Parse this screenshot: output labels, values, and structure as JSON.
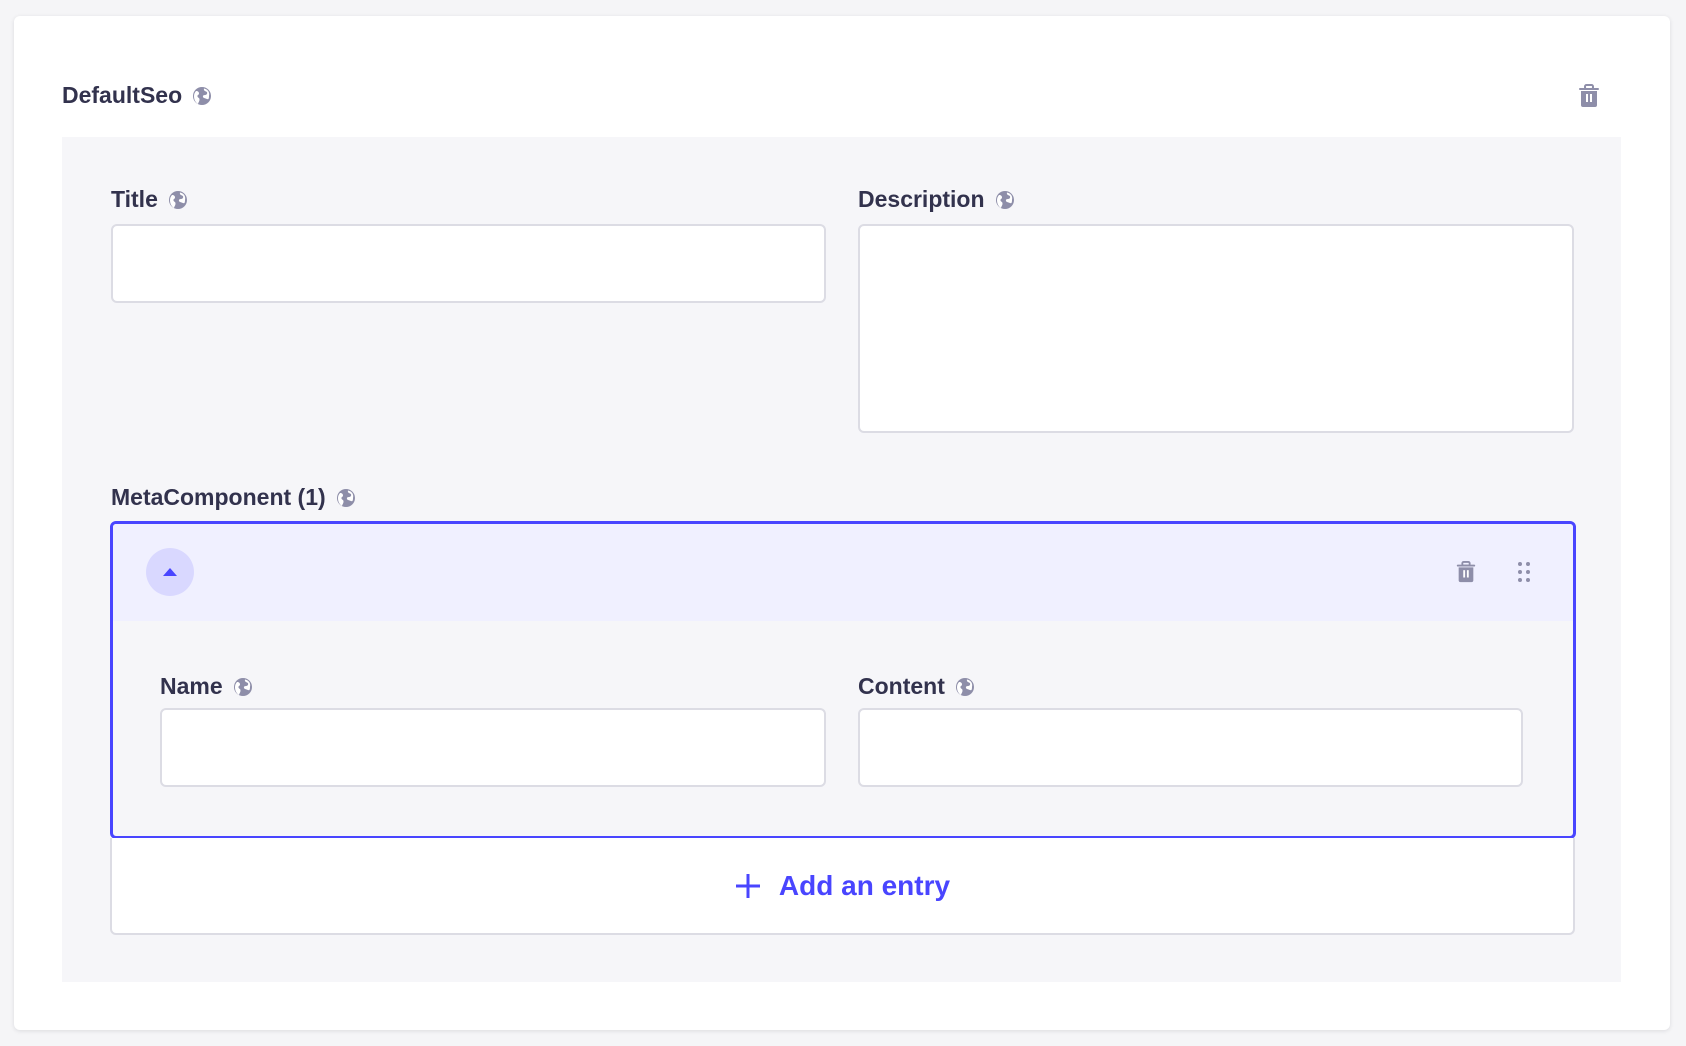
{
  "component": {
    "title": "DefaultSeo",
    "delete_icon": "trash-icon",
    "locale_icon": "globe-icon"
  },
  "fields": {
    "title_label": "Title",
    "title_value": "",
    "description_label": "Description",
    "description_value": ""
  },
  "meta": {
    "label": "MetaComponent (1)",
    "entry": {
      "name_label": "Name",
      "name_value": "",
      "content_label": "Content",
      "content_value": ""
    },
    "add_label": "Add an entry"
  },
  "colors": {
    "accent": "#4945ff",
    "text": "#32324d",
    "icon": "#8e8ea9"
  }
}
